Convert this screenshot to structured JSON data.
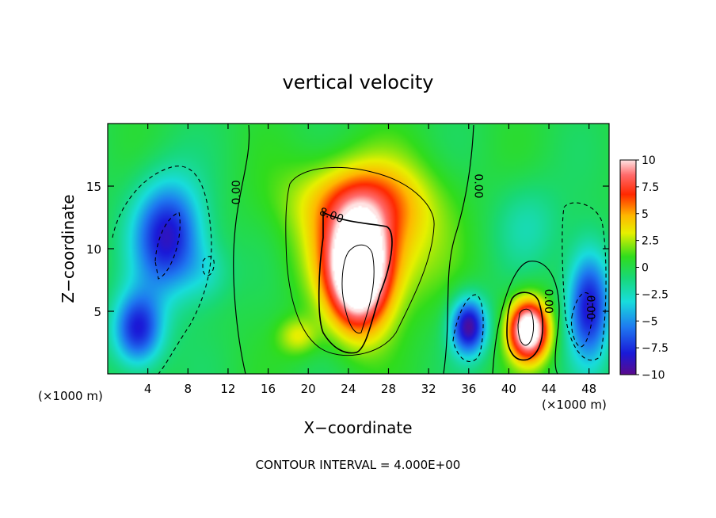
{
  "chart_data": {
    "type": "heatmap",
    "title": "vertical velocity",
    "xlabel": "X−coordinate",
    "ylabel": "Z−coordinate",
    "x_unit_left": "(×1000 m)",
    "x_unit_right": "(×1000 m)",
    "footer": "CONTOUR INTERVAL = 4.000E+00",
    "xlim": [
      0,
      50
    ],
    "ylim": [
      0,
      20
    ],
    "x_ticks": [
      4,
      8,
      12,
      16,
      20,
      24,
      28,
      32,
      36,
      40,
      44,
      48
    ],
    "x_tick_labels": [
      "4",
      "8",
      "12",
      "16",
      "20",
      "24",
      "28",
      "32",
      "36",
      "40",
      "44",
      "48"
    ],
    "y_ticks": [
      5,
      10,
      15
    ],
    "y_tick_labels": [
      "5",
      "10",
      "15"
    ],
    "colorbar": {
      "range": [
        -10,
        10
      ],
      "ticks": [
        10,
        7.5,
        5,
        2.5,
        0,
        -2.5,
        -5,
        -7.5,
        -10
      ],
      "tick_labels": [
        "10",
        "7.5",
        "5",
        "2.5",
        "0",
        "−2.5",
        "−5",
        "−7.5",
        "−10"
      ]
    },
    "contour_labels": [
      {
        "text": "0.00",
        "x": 13.2,
        "y": 14.5,
        "angle": -90
      },
      {
        "text": "8.00",
        "x": 22.2,
        "y": 12.4,
        "angle": 20
      },
      {
        "text": "0.00",
        "x": 36.6,
        "y": 15.0,
        "angle": 90
      },
      {
        "text": "0.00",
        "x": 43.6,
        "y": 5.8,
        "angle": 90
      },
      {
        "text": "0.00",
        "x": 47.8,
        "y": 5.3,
        "angle": 90
      }
    ],
    "features": [
      {
        "name": "updraft-core",
        "x": 25,
        "y": 8,
        "sx": 3.0,
        "sy": 4.5,
        "amp": 13
      },
      {
        "name": "updraft-envelope",
        "x": 26,
        "y": 11,
        "sx": 6.5,
        "sy": 5.5,
        "amp": 5.5
      },
      {
        "name": "upper-updraft",
        "x": 25,
        "y": 14,
        "sx": 7,
        "sy": 3,
        "amp": 3
      },
      {
        "name": "updraft-east",
        "x": 42,
        "y": 3.5,
        "sx": 2.0,
        "sy": 2.4,
        "amp": 13
      },
      {
        "name": "downdraft-west-upper",
        "x": 6,
        "y": 11,
        "sx": 3.5,
        "sy": 4.5,
        "amp": -8.5
      },
      {
        "name": "downdraft-west-lower",
        "x": 3,
        "y": 3.5,
        "sx": 2.5,
        "sy": 3.0,
        "amp": -8
      },
      {
        "name": "downdraft-36",
        "x": 36,
        "y": 3.8,
        "sx": 1.8,
        "sy": 2.3,
        "amp": -9.5
      },
      {
        "name": "downdraft-48",
        "x": 48,
        "y": 5.5,
        "sx": 2.2,
        "sy": 4.5,
        "amp": -8.5
      },
      {
        "name": "weak-down-42",
        "x": 42,
        "y": 12,
        "sx": 3.5,
        "sy": 3.5,
        "amp": -2
      },
      {
        "name": "weak-down-10",
        "x": 10,
        "y": 8,
        "sx": 2.5,
        "sy": 2.5,
        "amp": -2
      },
      {
        "name": "weak-up-20-low",
        "x": 19,
        "y": 3,
        "sx": 2.0,
        "sy": 1.5,
        "amp": 3
      }
    ]
  }
}
